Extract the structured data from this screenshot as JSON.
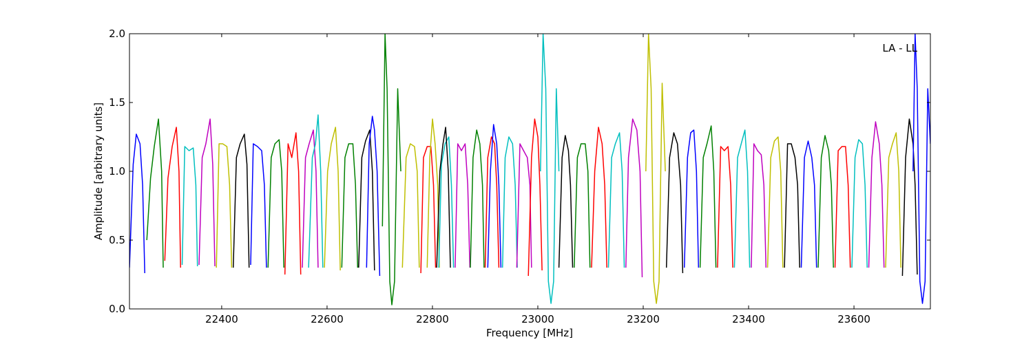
{
  "chart_data": {
    "type": "line",
    "title": "",
    "xlabel": "Frequency [MHz]",
    "ylabel": "Amplitude [arbitrary units]",
    "xlim": [
      22225,
      23745
    ],
    "ylim": [
      0.0,
      2.0
    ],
    "xticks": [
      22400,
      22600,
      22800,
      23000,
      23200,
      23400,
      23600
    ],
    "yticks": [
      0.0,
      0.5,
      1.0,
      1.5,
      2.0
    ],
    "xtick_labels": [
      "22400",
      "22600",
      "22800",
      "23000",
      "23200",
      "23400",
      "23600"
    ],
    "ytick_labels": [
      "0.0",
      "0.5",
      "1.0",
      "1.5",
      "2.0"
    ],
    "grid": false,
    "annotation": {
      "text": "LA - LL",
      "position": "top-right"
    },
    "colors": [
      "#0000ff",
      "#008000",
      "#ff0000",
      "#00bfbf",
      "#bf00bf",
      "#bfbf00",
      "#000000"
    ],
    "series_description": "Repeating bandpass segments of ~32 MHz each, colored in cycle; peaks near 1.2-1.4, edge dips near 0.25-0.3",
    "series": [
      {
        "color": "#0000ff",
        "x": [
          22225,
          22232,
          22238,
          22245,
          22250,
          22254
        ],
        "y": [
          0.3,
          1.05,
          1.27,
          1.2,
          0.9,
          0.26
        ]
      },
      {
        "color": "#008000",
        "x": [
          22258,
          22265,
          22272,
          22280,
          22286,
          22289
        ],
        "y": [
          0.5,
          0.95,
          1.18,
          1.38,
          1.0,
          0.3
        ]
      },
      {
        "color": "#ff0000",
        "x": [
          22292,
          22298,
          22306,
          22314,
          22319,
          22322
        ],
        "y": [
          0.35,
          0.95,
          1.18,
          1.32,
          1.0,
          0.3
        ]
      },
      {
        "color": "#00bfbf",
        "x": [
          22325,
          22330,
          22338,
          22346,
          22351,
          22354
        ],
        "y": [
          0.32,
          1.18,
          1.15,
          1.17,
          0.9,
          0.31
        ]
      },
      {
        "color": "#bf00bf",
        "x": [
          22357,
          22363,
          22370,
          22378,
          22383,
          22387
        ],
        "y": [
          0.32,
          1.1,
          1.2,
          1.38,
          1.05,
          0.31
        ]
      },
      {
        "color": "#bfbf00",
        "x": [
          22390,
          22395,
          22402,
          22410,
          22415,
          22419
        ],
        "y": [
          0.3,
          1.2,
          1.2,
          1.18,
          0.9,
          0.3
        ]
      },
      {
        "color": "#000000",
        "x": [
          22422,
          22428,
          22435,
          22443,
          22448,
          22452
        ],
        "y": [
          0.3,
          1.1,
          1.2,
          1.27,
          1.05,
          0.3
        ]
      },
      {
        "color": "#0000ff",
        "x": [
          22455,
          22460,
          22468,
          22476,
          22481,
          22485
        ],
        "y": [
          0.32,
          1.2,
          1.18,
          1.15,
          0.9,
          0.3
        ]
      },
      {
        "color": "#008000",
        "x": [
          22488,
          22494,
          22501,
          22509,
          22514,
          22518
        ],
        "y": [
          0.3,
          1.1,
          1.2,
          1.23,
          1.0,
          0.3
        ]
      },
      {
        "color": "#ff0000",
        "x": [
          22520,
          22526,
          22533,
          22541,
          22546,
          22550
        ],
        "y": [
          0.25,
          1.2,
          1.1,
          1.28,
          1.0,
          0.25
        ]
      },
      {
        "color": "#bf00bf",
        "x": [
          22553,
          22559,
          22566,
          22574,
          22579,
          22583
        ],
        "y": [
          0.3,
          1.1,
          1.2,
          1.3,
          1.0,
          0.3
        ]
      },
      {
        "color": "#00bfbf",
        "x": [
          22565,
          22572,
          22578,
          22583,
          22588,
          22592
        ],
        "y": [
          0.3,
          1.1,
          1.2,
          1.41,
          1.0,
          0.3
        ]
      },
      {
        "color": "#bfbf00",
        "x": [
          22595,
          22601,
          22608,
          22616,
          22621,
          22625
        ],
        "y": [
          0.3,
          1.0,
          1.2,
          1.32,
          1.0,
          0.28
        ]
      },
      {
        "color": "#008000",
        "x": [
          22628,
          22634,
          22641,
          22649,
          22654,
          22658
        ],
        "y": [
          0.3,
          1.1,
          1.2,
          1.2,
          0.9,
          0.3
        ]
      },
      {
        "color": "#000000",
        "x": [
          22660,
          22666,
          22673,
          22681,
          22686,
          22690
        ],
        "y": [
          0.3,
          1.1,
          1.22,
          1.3,
          1.0,
          0.28
        ]
      },
      {
        "color": "#0000ff",
        "x": [
          22675,
          22680,
          22686,
          22690,
          22695,
          22700
        ],
        "y": [
          0.3,
          1.2,
          1.4,
          1.3,
          1.0,
          0.24
        ]
      },
      {
        "color": "#008000",
        "x": [
          22705,
          22710,
          22714,
          22719,
          22723,
          22728,
          22734,
          22740
        ],
        "y": [
          0.6,
          2.0,
          1.6,
          0.2,
          0.03,
          0.2,
          1.6,
          1.0
        ]
      },
      {
        "color": "#bfbf00",
        "x": [
          22743,
          22750,
          22758,
          22766,
          22771,
          22775
        ],
        "y": [
          0.3,
          1.1,
          1.2,
          1.18,
          1.0,
          0.3
        ]
      },
      {
        "color": "#ff0000",
        "x": [
          22778,
          22783,
          22790,
          22797,
          22802,
          22806
        ],
        "y": [
          0.26,
          1.1,
          1.18,
          1.18,
          0.9,
          0.3
        ]
      },
      {
        "color": "#bfbf00",
        "x": [
          22790,
          22795,
          22800,
          22805,
          22810,
          22813
        ],
        "y": [
          0.3,
          1.1,
          1.38,
          1.2,
          0.9,
          0.3
        ]
      },
      {
        "color": "#00bfbf",
        "x": [
          22812,
          22817,
          22824,
          22831,
          22836,
          22840
        ],
        "y": [
          0.3,
          1.05,
          1.2,
          1.25,
          0.9,
          0.3
        ]
      },
      {
        "color": "#000000",
        "x": [
          22808,
          22814,
          22820,
          22825,
          22830,
          22834
        ],
        "y": [
          0.3,
          1.0,
          1.2,
          1.32,
          1.0,
          0.3
        ]
      },
      {
        "color": "#bf00bf",
        "x": [
          22843,
          22848,
          22855,
          22862,
          22867,
          22871
        ],
        "y": [
          0.3,
          1.2,
          1.15,
          1.2,
          0.9,
          0.3
        ]
      },
      {
        "color": "#008000",
        "x": [
          22872,
          22877,
          22884,
          22890,
          22895,
          22898
        ],
        "y": [
          0.3,
          1.1,
          1.3,
          1.2,
          0.9,
          0.3
        ]
      },
      {
        "color": "#ff0000",
        "x": [
          22900,
          22905,
          22912,
          22918,
          22922,
          22926
        ],
        "y": [
          0.3,
          1.1,
          1.25,
          1.2,
          0.9,
          0.3
        ]
      },
      {
        "color": "#0000ff",
        "x": [
          22905,
          22910,
          22916,
          22922,
          22926,
          22930
        ],
        "y": [
          0.3,
          1.0,
          1.34,
          1.2,
          0.9,
          0.3
        ]
      },
      {
        "color": "#00bfbf",
        "x": [
          22933,
          22938,
          22945,
          22952,
          22957,
          22961
        ],
        "y": [
          0.3,
          1.1,
          1.25,
          1.2,
          0.9,
          0.3
        ]
      },
      {
        "color": "#bf00bf",
        "x": [
          22960,
          22966,
          22973,
          22980,
          22985,
          22988
        ],
        "y": [
          0.3,
          1.2,
          1.15,
          1.1,
          0.9,
          0.3
        ]
      },
      {
        "color": "#ff0000",
        "x": [
          22982,
          22988,
          22994,
          23000,
          23004,
          23008
        ],
        "y": [
          0.24,
          1.1,
          1.38,
          1.25,
          0.9,
          0.28
        ]
      },
      {
        "color": "#00bfbf",
        "x": [
          23005,
          23010,
          23015,
          23020,
          23025,
          23030,
          23035,
          23040
        ],
        "y": [
          1.0,
          2.0,
          1.6,
          0.2,
          0.04,
          0.2,
          1.6,
          1.0
        ]
      },
      {
        "color": "#000000",
        "x": [
          23040,
          23046,
          23052,
          23058,
          23062,
          23066
        ],
        "y": [
          0.3,
          1.1,
          1.26,
          1.15,
          0.9,
          0.3
        ]
      },
      {
        "color": "#008000",
        "x": [
          23069,
          23075,
          23082,
          23090,
          23095,
          23099
        ],
        "y": [
          0.3,
          1.1,
          1.2,
          1.2,
          1.0,
          0.3
        ]
      },
      {
        "color": "#ff0000",
        "x": [
          23102,
          23108,
          23115,
          23122,
          23127,
          23131
        ],
        "y": [
          0.3,
          1.0,
          1.32,
          1.2,
          0.9,
          0.3
        ]
      },
      {
        "color": "#00bfbf",
        "x": [
          23134,
          23140,
          23147,
          23155,
          23160,
          23164
        ],
        "y": [
          0.3,
          1.1,
          1.2,
          1.28,
          1.0,
          0.3
        ]
      },
      {
        "color": "#bf00bf",
        "x": [
          23167,
          23172,
          23180,
          23188,
          23194,
          23198
        ],
        "y": [
          0.3,
          1.1,
          1.38,
          1.3,
          1.0,
          0.23
        ]
      },
      {
        "color": "#bfbf00",
        "x": [
          23205,
          23210,
          23215,
          23220,
          23225,
          23230,
          23236,
          23242
        ],
        "y": [
          1.0,
          2.0,
          1.6,
          0.2,
          0.04,
          0.2,
          1.64,
          1.0
        ]
      },
      {
        "color": "#000000",
        "x": [
          23244,
          23250,
          23258,
          23265,
          23271,
          23275
        ],
        "y": [
          0.3,
          1.1,
          1.28,
          1.2,
          0.9,
          0.26
        ]
      },
      {
        "color": "#0000ff",
        "x": [
          23278,
          23284,
          23290,
          23296,
          23301,
          23305
        ],
        "y": [
          0.3,
          1.1,
          1.28,
          1.3,
          1.0,
          0.3
        ]
      },
      {
        "color": "#008000",
        "x": [
          23308,
          23314,
          23321,
          23329,
          23334,
          23338
        ],
        "y": [
          0.3,
          1.1,
          1.2,
          1.33,
          1.0,
          0.3
        ]
      },
      {
        "color": "#ff0000",
        "x": [
          23341,
          23347,
          23354,
          23361,
          23366,
          23370
        ],
        "y": [
          0.3,
          1.18,
          1.15,
          1.18,
          0.9,
          0.3
        ]
      },
      {
        "color": "#00bfbf",
        "x": [
          23373,
          23379,
          23386,
          23393,
          23398,
          23402
        ],
        "y": [
          0.3,
          1.1,
          1.2,
          1.3,
          1.0,
          0.3
        ]
      },
      {
        "color": "#bf00bf",
        "x": [
          23405,
          23410,
          23417,
          23424,
          23429,
          23433
        ],
        "y": [
          0.3,
          1.2,
          1.15,
          1.12,
          0.9,
          0.3
        ]
      },
      {
        "color": "#bfbf00",
        "x": [
          23436,
          23442,
          23449,
          23456,
          23461,
          23465
        ],
        "y": [
          0.3,
          1.1,
          1.22,
          1.25,
          1.0,
          0.3
        ]
      },
      {
        "color": "#000000",
        "x": [
          23468,
          23474,
          23481,
          23488,
          23493,
          23497
        ],
        "y": [
          0.3,
          1.2,
          1.2,
          1.1,
          0.9,
          0.3
        ]
      },
      {
        "color": "#0000ff",
        "x": [
          23500,
          23506,
          23513,
          23520,
          23525,
          23529
        ],
        "y": [
          0.3,
          1.1,
          1.22,
          1.1,
          0.9,
          0.3
        ]
      },
      {
        "color": "#008000",
        "x": [
          23532,
          23538,
          23545,
          23552,
          23557,
          23561
        ],
        "y": [
          0.3,
          1.1,
          1.26,
          1.15,
          0.9,
          0.3
        ]
      },
      {
        "color": "#ff0000",
        "x": [
          23564,
          23570,
          23577,
          23584,
          23589,
          23593
        ],
        "y": [
          0.3,
          1.15,
          1.18,
          1.18,
          0.9,
          0.3
        ]
      },
      {
        "color": "#00bfbf",
        "x": [
          23596,
          23602,
          23609,
          23616,
          23621,
          23625
        ],
        "y": [
          0.3,
          1.1,
          1.23,
          1.2,
          0.9,
          0.3
        ]
      },
      {
        "color": "#bf00bf",
        "x": [
          23628,
          23634,
          23641,
          23648,
          23653,
          23657
        ],
        "y": [
          0.3,
          1.1,
          1.36,
          1.2,
          0.9,
          0.3
        ]
      },
      {
        "color": "#bfbf00",
        "x": [
          23660,
          23666,
          23673,
          23680,
          23685,
          23689
        ],
        "y": [
          0.3,
          1.1,
          1.2,
          1.28,
          1.0,
          0.3
        ]
      },
      {
        "color": "#000000",
        "x": [
          23692,
          23698,
          23705,
          23712,
          23716,
          23720
        ],
        "y": [
          0.24,
          1.1,
          1.38,
          1.2,
          0.9,
          0.25
        ]
      },
      {
        "color": "#0000ff",
        "x": [
          23712,
          23716,
          23720,
          23725,
          23730,
          23735,
          23740,
          23745
        ],
        "y": [
          1.0,
          2.0,
          1.6,
          0.2,
          0.04,
          0.2,
          1.6,
          1.2
        ]
      }
    ]
  }
}
